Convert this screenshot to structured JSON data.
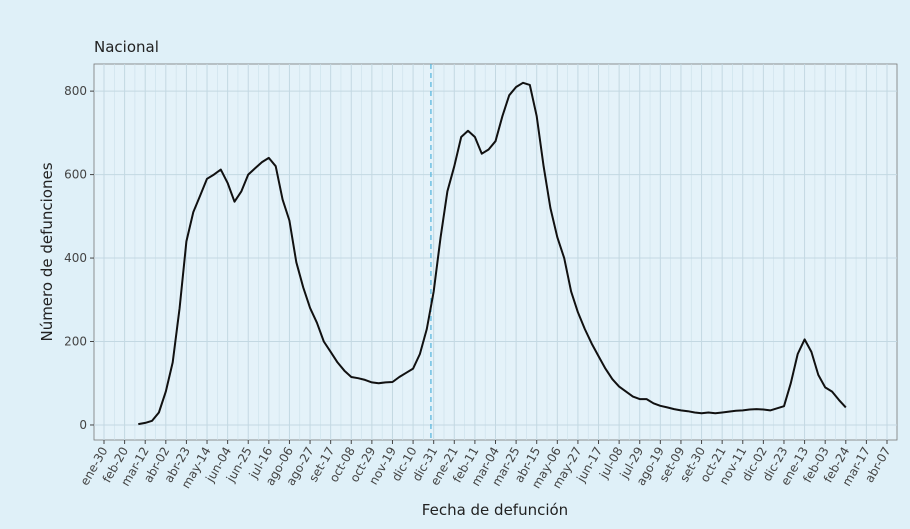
{
  "chart_data": {
    "type": "line",
    "title": "Nacional",
    "x_label": "Fecha de defunción",
    "y_label": "Número de defunciones",
    "categories": [
      "ene-30",
      null,
      null,
      "feb-20",
      null,
      null,
      "mar-12",
      null,
      null,
      "abr-02",
      null,
      null,
      "abr-23",
      null,
      null,
      "may-14",
      null,
      null,
      "jun-04",
      null,
      null,
      "jun-25",
      null,
      null,
      "jul-16",
      null,
      null,
      "ago-06",
      null,
      null,
      "ago-27",
      null,
      null,
      "set-17",
      null,
      null,
      "oct-08",
      null,
      null,
      "oct-29",
      null,
      null,
      "nov-19",
      null,
      null,
      "dic-10",
      null,
      null,
      "dic-31",
      null,
      null,
      "ene-21",
      null,
      null,
      "feb-11",
      null,
      null,
      "mar-04",
      null,
      null,
      "mar-25",
      null,
      null,
      "abr-15",
      null,
      null,
      "may-06",
      null,
      null,
      "may-27",
      null,
      null,
      "jun-17",
      null,
      null,
      "jul-08",
      null,
      null,
      "jul-29",
      null,
      null,
      "ago-19",
      null,
      null,
      "set-09",
      null,
      null,
      "set-30",
      null,
      null,
      "oct-21",
      null,
      null,
      "nov-11",
      null,
      null,
      "dic-02",
      null,
      null,
      "dic-23",
      null,
      null,
      "ene-13",
      null,
      null,
      "feb-03",
      null,
      null,
      "feb-24",
      null,
      null,
      "mar-17",
      null,
      null,
      "abr-07"
    ],
    "series": [
      {
        "name": "Nacional",
        "color": "#111111",
        "values": [
          null,
          null,
          null,
          null,
          null,
          2,
          5,
          10,
          30,
          80,
          150,
          280,
          440,
          510,
          550,
          590,
          600,
          612,
          580,
          535,
          560,
          600,
          615,
          630,
          640,
          620,
          540,
          490,
          390,
          330,
          280,
          245,
          200,
          175,
          150,
          130,
          115,
          112,
          108,
          102,
          100,
          102,
          103,
          115,
          125,
          135,
          170,
          230,
          320,
          450,
          560,
          620,
          690,
          705,
          690,
          650,
          660,
          680,
          740,
          790,
          810,
          820,
          815,
          740,
          620,
          520,
          450,
          400,
          320,
          270,
          230,
          195,
          165,
          135,
          110,
          92,
          80,
          68,
          62,
          62,
          52,
          46,
          42,
          38,
          35,
          33,
          30,
          28,
          30,
          28,
          30,
          32,
          34,
          35,
          37,
          38,
          37,
          35,
          40,
          45,
          100,
          170,
          205,
          175,
          120,
          90,
          80,
          60,
          42,
          null,
          null,
          null,
          null,
          null,
          null
        ]
      }
    ],
    "ylim": [
      -36,
      865
    ],
    "yticks": [
      0,
      200,
      400,
      600,
      800
    ],
    "grid": true
  }
}
